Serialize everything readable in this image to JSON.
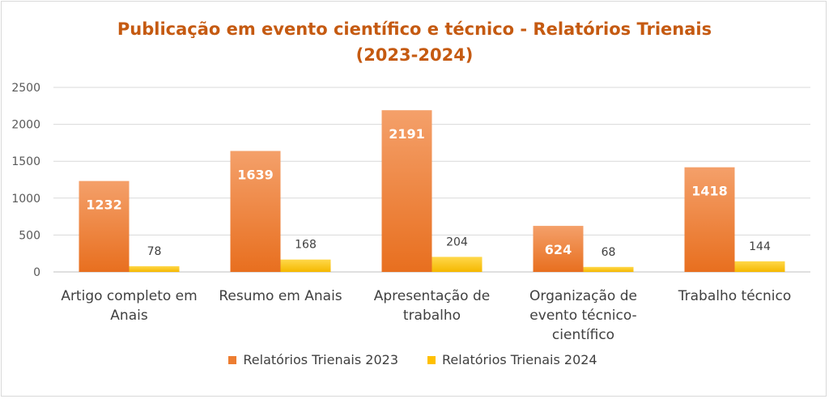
{
  "chart_data": {
    "type": "bar",
    "title_line1": "Publicação em evento científico e técnico - Relatórios Trienais",
    "title_line2": "(2023-2024)",
    "categories": [
      [
        "Artigo completo em",
        "Anais"
      ],
      [
        "Resumo em Anais"
      ],
      [
        "Apresentação de",
        "trabalho"
      ],
      [
        "Organização de",
        "evento técnico-",
        "científico"
      ],
      [
        "Trabalho técnico"
      ]
    ],
    "series": [
      {
        "name": "Relatórios Trienais 2023",
        "values": [
          1232,
          1639,
          2191,
          624,
          1418
        ],
        "color": "#ed7d31"
      },
      {
        "name": "Relatórios Trienais 2024",
        "values": [
          78,
          168,
          204,
          68,
          144
        ],
        "color": "#ffc000"
      }
    ],
    "ylim": [
      0,
      2500
    ],
    "yticks": [
      0,
      500,
      1000,
      1500,
      2000,
      2500
    ],
    "grid": true,
    "legend_position": "bottom"
  }
}
